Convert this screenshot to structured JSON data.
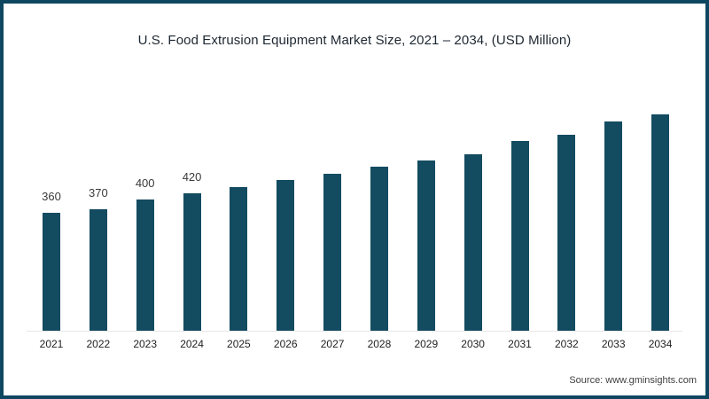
{
  "source": {
    "label": "Source: www.gminsights.com"
  },
  "colors": {
    "bar": "#134b60",
    "frame_border": "#0f4660",
    "axis_line": "#e7e7e7",
    "title_text": "#1d2731",
    "label_text": "#3a3a3a",
    "background": "#ffffff"
  },
  "chart_data": {
    "type": "bar",
    "title": "U.S. Food Extrusion Equipment Market Size, 2021 – 2034, (USD Million)",
    "categories": [
      "2021",
      "2022",
      "2023",
      "2024",
      "2025",
      "2026",
      "2027",
      "2028",
      "2029",
      "2030",
      "2031",
      "2032",
      "2033",
      "2034"
    ],
    "values": [
      360,
      370,
      400,
      420,
      440,
      460,
      480,
      500,
      520,
      540,
      580,
      600,
      640,
      660
    ],
    "data_labels": [
      "360",
      "370",
      "400",
      "420",
      "",
      "",
      "",
      "",
      "",
      "",
      "",
      "",
      "",
      ""
    ],
    "xlabel": "",
    "ylabel": "",
    "ylim": [
      0,
      700
    ],
    "grid": false,
    "legend": null,
    "bar_color": "#134b60"
  }
}
